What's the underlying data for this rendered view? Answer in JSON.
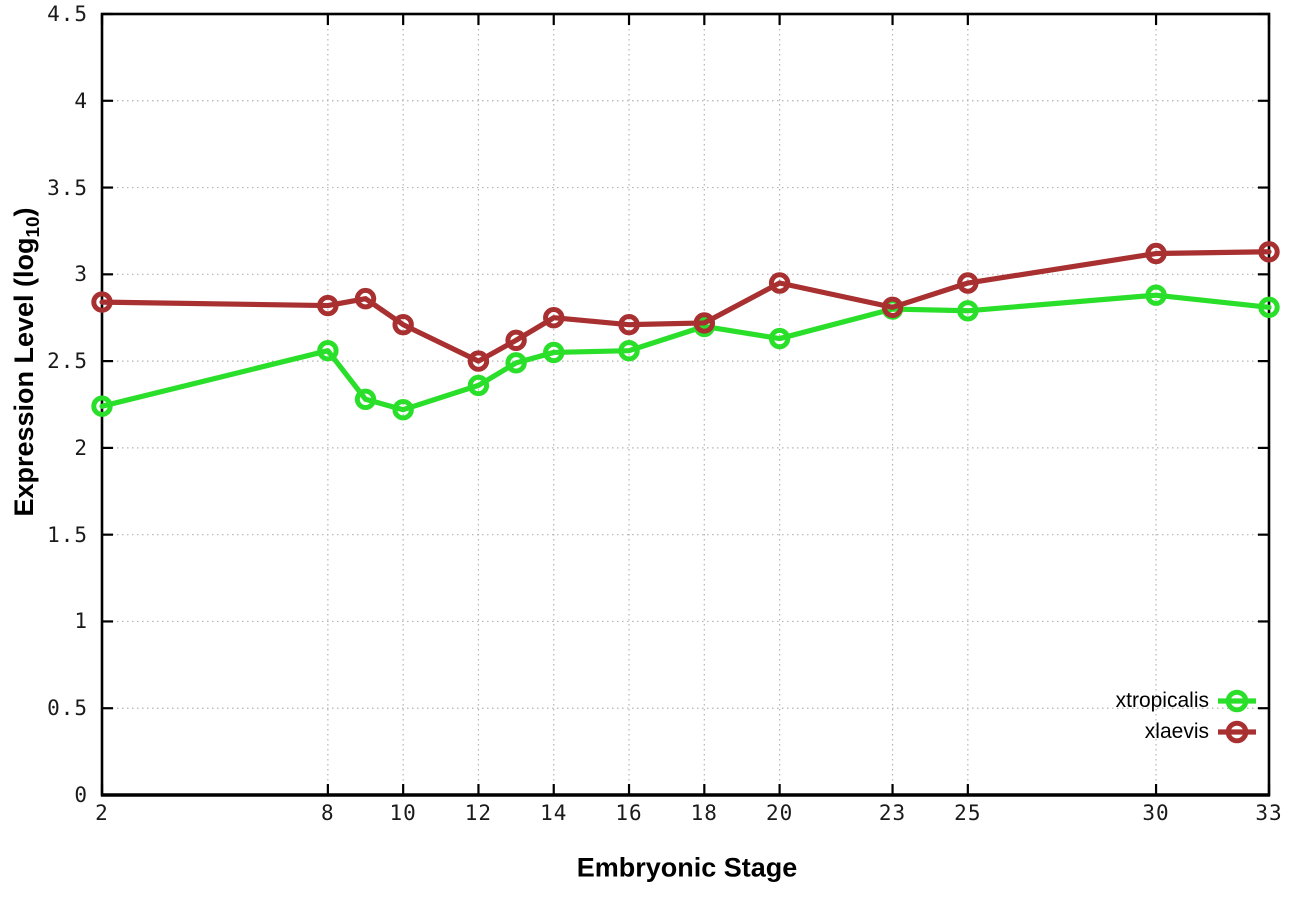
{
  "chart_data": {
    "type": "line",
    "title": "",
    "xlabel": "Embryonic Stage",
    "ylabel": "Expression Level (log10)",
    "ylabel_parts": {
      "prefix": "Expression Level (log",
      "sub": "10",
      "suffix": ")"
    },
    "x": [
      2,
      8,
      9,
      10,
      12,
      13,
      14,
      16,
      18,
      20,
      23,
      25,
      30,
      33
    ],
    "series": [
      {
        "name": "xtropicalis",
        "color": "#2adf2a",
        "values": [
          2.24,
          2.56,
          2.28,
          2.22,
          2.36,
          2.49,
          2.55,
          2.56,
          2.7,
          2.63,
          2.8,
          2.79,
          2.88,
          2.81
        ]
      },
      {
        "name": "xlaevis",
        "color": "#a83030",
        "values": [
          2.84,
          2.82,
          2.86,
          2.71,
          2.5,
          2.62,
          2.75,
          2.71,
          2.72,
          2.95,
          2.81,
          2.95,
          3.12,
          3.13
        ]
      }
    ],
    "xlim": [
      2,
      33
    ],
    "ylim": [
      0,
      4.5
    ],
    "xticks": [
      2,
      8,
      10,
      12,
      14,
      16,
      18,
      20,
      23,
      25,
      30,
      33
    ],
    "yticks": [
      0,
      0.5,
      1,
      1.5,
      2,
      2.5,
      3,
      3.5,
      4,
      4.5
    ],
    "grid": true,
    "legend_position": "bottom-right",
    "marker": "open-circle",
    "grid_color": "#b4b4b4",
    "axis_color": "#000000"
  }
}
